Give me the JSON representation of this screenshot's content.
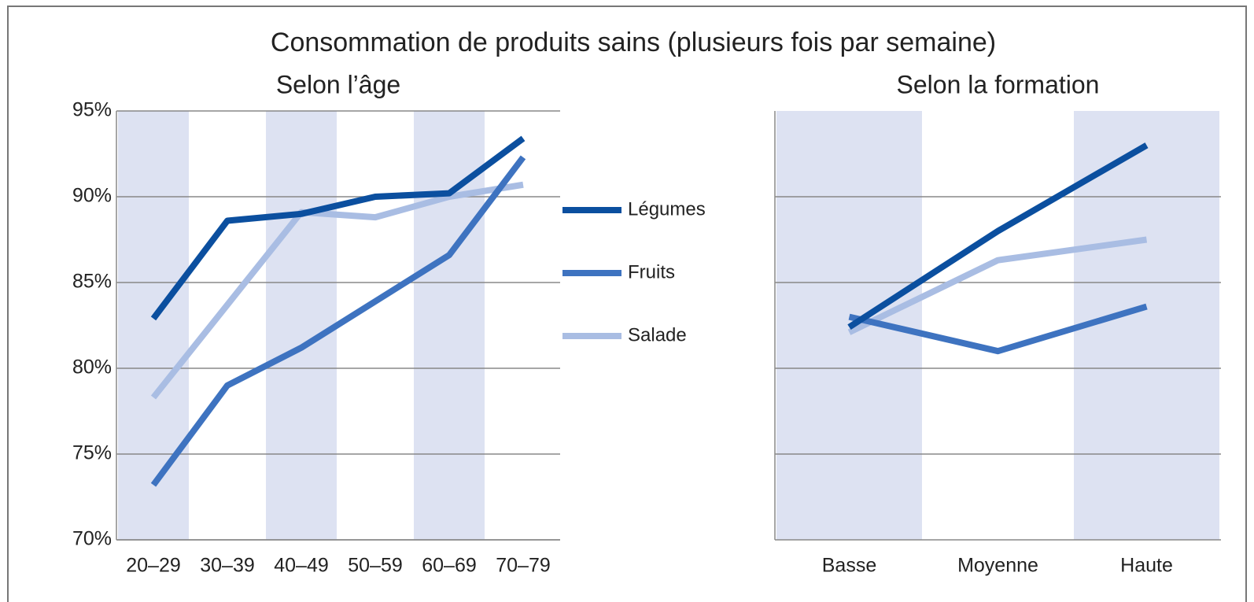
{
  "title": "Consommation de produits sains (plusieurs fois par semaine)",
  "chart_data": [
    {
      "type": "line",
      "title": "Selon l’âge",
      "categories": [
        "20–29",
        "30–39",
        "40–49",
        "50–59",
        "60–69",
        "70–79"
      ],
      "ylim": [
        70,
        95
      ],
      "yticks": [
        {
          "value": 70,
          "label": "70%"
        },
        {
          "value": 75,
          "label": "75%"
        },
        {
          "value": 80,
          "label": "80%"
        },
        {
          "value": 85,
          "label": "85%"
        },
        {
          "value": 90,
          "label": "90%"
        },
        {
          "value": 95,
          "label": "95%"
        }
      ],
      "grid": true,
      "series": [
        {
          "name": "Légumes",
          "color": "#0b4f9f",
          "values": [
            82.9,
            88.6,
            89.0,
            90.0,
            90.2,
            93.4
          ]
        },
        {
          "name": "Fruits",
          "color": "#3e73c0",
          "values": [
            73.2,
            79.0,
            81.2,
            83.9,
            86.6,
            92.3
          ]
        },
        {
          "name": "Salade",
          "color": "#a9bde3",
          "values": [
            78.3,
            83.7,
            89.1,
            88.8,
            90.0,
            90.7
          ]
        }
      ]
    },
    {
      "type": "line",
      "title": "Selon la formation",
      "categories": [
        "Basse",
        "Moyenne",
        "Haute"
      ],
      "ylim": [
        70,
        95
      ],
      "yticks": [
        75,
        80,
        85,
        90
      ],
      "grid": true,
      "series": [
        {
          "name": "Légumes",
          "color": "#0b4f9f",
          "values": [
            82.4,
            88.0,
            93.0
          ]
        },
        {
          "name": "Fruits",
          "color": "#3e73c0",
          "values": [
            83.0,
            81.0,
            83.6
          ]
        },
        {
          "name": "Salade",
          "color": "#a9bde3",
          "values": [
            82.1,
            86.3,
            87.5
          ]
        }
      ]
    }
  ]
}
